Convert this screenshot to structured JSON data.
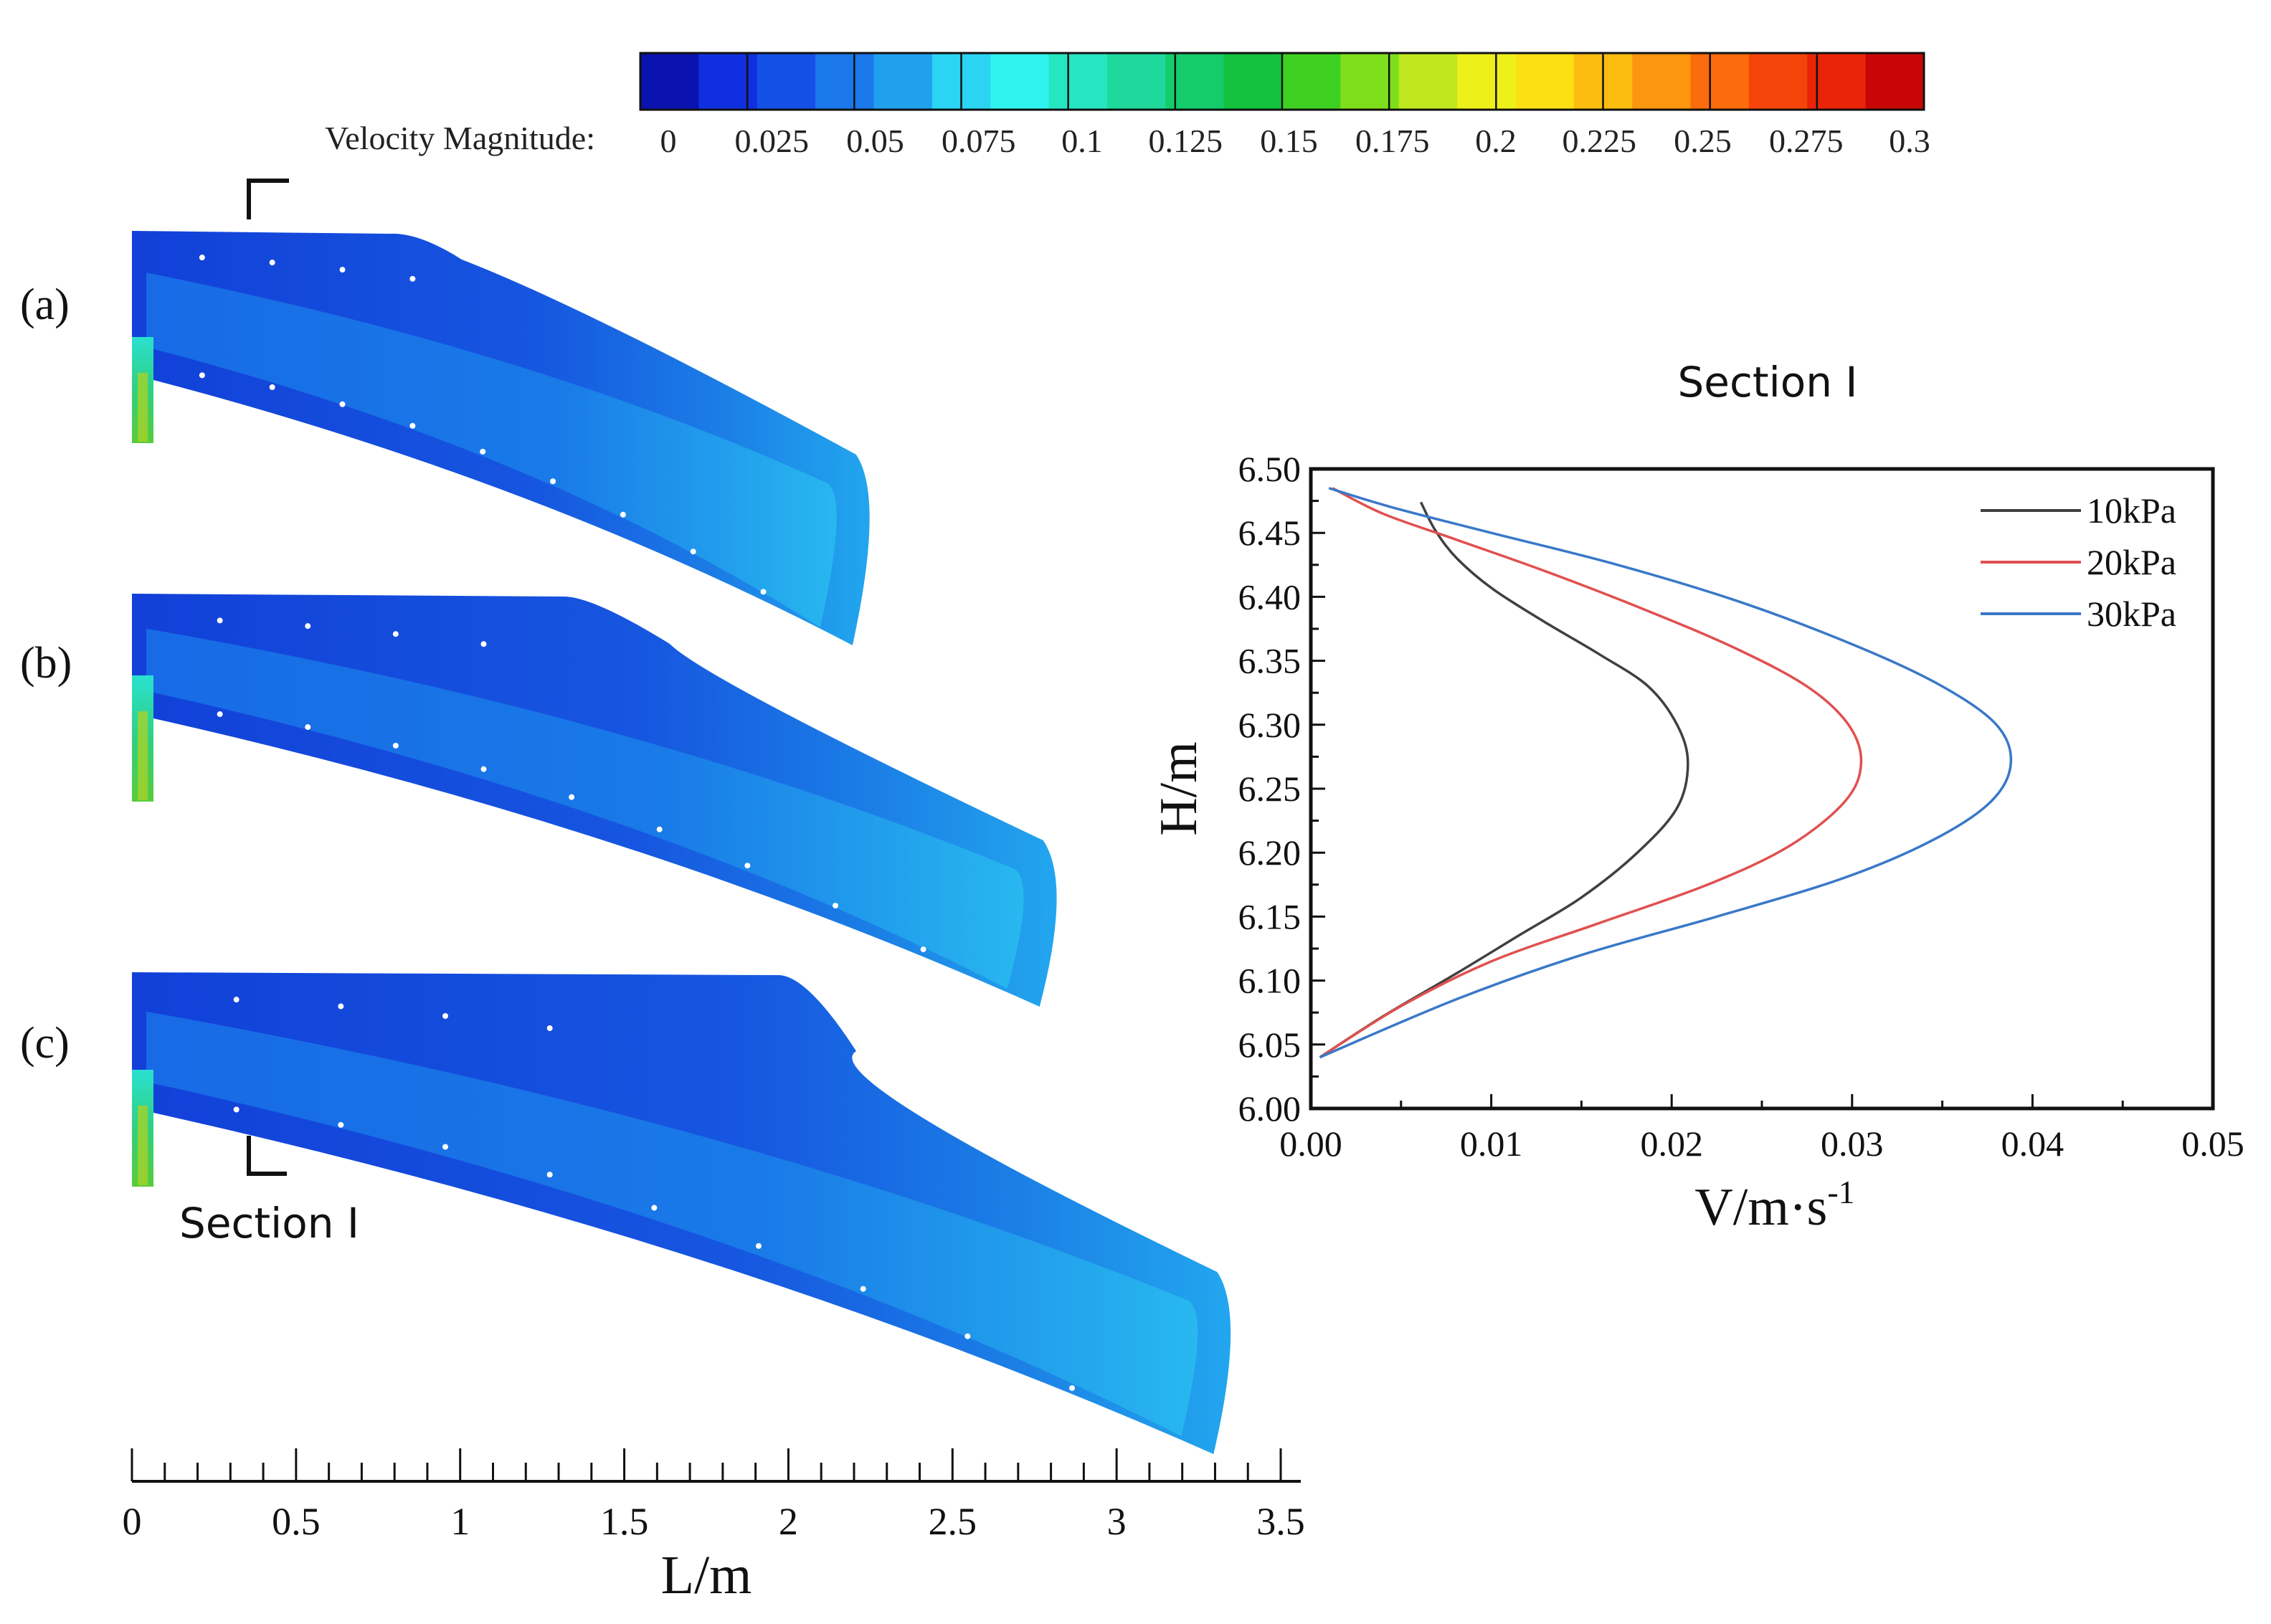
{
  "colorbar": {
    "label": "Velocity Magnitude:",
    "ticks": [
      "0",
      "0.025",
      "0.05",
      "0.075",
      "0.1",
      "0.125",
      "0.15",
      "0.175",
      "0.2",
      "0.225",
      "0.25",
      "0.275",
      "0.3"
    ],
    "range": [
      0,
      0.3
    ],
    "colors": [
      "#0a12b0",
      "#0f2fe0",
      "#1450e6",
      "#1a78ea",
      "#21a0ee",
      "#2ad4f2",
      "#2ef2ee",
      "#26e6c2",
      "#1ed89c",
      "#14cc6a",
      "#12c23e",
      "#3ed020",
      "#7ede1c",
      "#bfe81e",
      "#eef01a",
      "#fde014",
      "#fdbc10",
      "#fc960e",
      "#fa6c0c",
      "#f5440a",
      "#ea2408",
      "#c80606"
    ]
  },
  "jets": [
    {
      "panel_label": "(a)",
      "length_m": 2.25
    },
    {
      "panel_label": "(b)",
      "length_m": 2.82
    },
    {
      "panel_label": "(c)",
      "length_m": 3.35
    }
  ],
  "section_label": "Section I",
  "jet_axis": {
    "xlabel": "L/m",
    "ticks": [
      "0",
      "0.5",
      "1",
      "1.5",
      "2",
      "2.5",
      "3",
      "3.5"
    ],
    "range": [
      0,
      3.5
    ]
  },
  "chart_data": {
    "type": "line",
    "title": "Section I",
    "xlabel": "V/m·s",
    "xlabel_superscript": "-1",
    "ylabel": "H/m",
    "xlim": [
      0,
      0.05
    ],
    "ylim": [
      6.0,
      6.5
    ],
    "xticks": [
      "0.00",
      "0.01",
      "0.02",
      "0.03",
      "0.04",
      "0.05"
    ],
    "yticks": [
      "6.00",
      "6.05",
      "6.10",
      "6.15",
      "6.20",
      "6.25",
      "6.30",
      "6.35",
      "6.40",
      "6.45",
      "6.50"
    ],
    "legend_position": "top-right",
    "series": [
      {
        "name": "10kPa",
        "color": "#404040",
        "points": [
          [
            0.0061,
            6.474
          ],
          [
            0.0069,
            6.452
          ],
          [
            0.0081,
            6.43
          ],
          [
            0.0101,
            6.406
          ],
          [
            0.013,
            6.38
          ],
          [
            0.016,
            6.355
          ],
          [
            0.0187,
            6.33
          ],
          [
            0.0203,
            6.3
          ],
          [
            0.0209,
            6.27
          ],
          [
            0.0203,
            6.235
          ],
          [
            0.0181,
            6.2
          ],
          [
            0.015,
            6.165
          ],
          [
            0.0115,
            6.135
          ],
          [
            0.008,
            6.105
          ],
          [
            0.004,
            6.072
          ],
          [
            0.0005,
            6.04
          ]
        ]
      },
      {
        "name": "20kPa",
        "color": "#e05050",
        "points": [
          [
            0.0012,
            6.485
          ],
          [
            0.004,
            6.465
          ],
          [
            0.008,
            6.445
          ],
          [
            0.013,
            6.42
          ],
          [
            0.0185,
            6.39
          ],
          [
            0.0235,
            6.36
          ],
          [
            0.0275,
            6.33
          ],
          [
            0.0298,
            6.3
          ],
          [
            0.0305,
            6.27
          ],
          [
            0.0296,
            6.24
          ],
          [
            0.0265,
            6.205
          ],
          [
            0.022,
            6.175
          ],
          [
            0.016,
            6.145
          ],
          [
            0.01,
            6.115
          ],
          [
            0.005,
            6.08
          ],
          [
            0.0005,
            6.04
          ]
        ]
      },
      {
        "name": "30kPa",
        "color": "#3a78c8",
        "points": [
          [
            0.001,
            6.485
          ],
          [
            0.0045,
            6.47
          ],
          [
            0.01,
            6.45
          ],
          [
            0.017,
            6.425
          ],
          [
            0.024,
            6.395
          ],
          [
            0.0305,
            6.36
          ],
          [
            0.035,
            6.33
          ],
          [
            0.038,
            6.3
          ],
          [
            0.0388,
            6.27
          ],
          [
            0.0377,
            6.24
          ],
          [
            0.0345,
            6.21
          ],
          [
            0.0295,
            6.18
          ],
          [
            0.0225,
            6.15
          ],
          [
            0.015,
            6.12
          ],
          [
            0.008,
            6.085
          ],
          [
            0.0005,
            6.04
          ]
        ]
      }
    ]
  }
}
